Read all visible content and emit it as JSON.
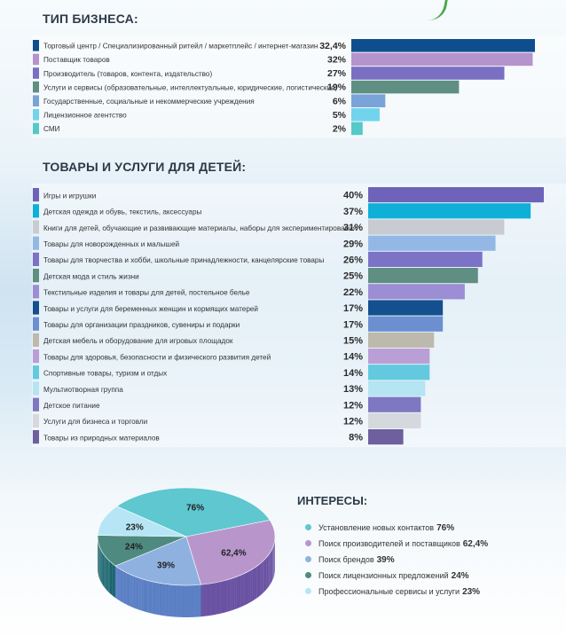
{
  "business_type": {
    "title": "ТИП БИЗНЕСА:"
  },
  "children_goods": {
    "title": "ТОВАРЫ И УСЛУГИ ДЛЯ ДЕТЕЙ:"
  },
  "interests": {
    "title": "ИНТЕРЕСЫ:"
  },
  "chart_data": [
    {
      "type": "bar",
      "orientation": "horizontal",
      "title": "ТИП БИЗНЕСА:",
      "xlim": [
        0,
        32.4
      ],
      "bars": [
        {
          "label": "Торговый центр / Специализированный ритейл / маркетплейс / интернет-магазин",
          "value": 32.4,
          "value_label": "32,4%",
          "color": "#0f4e8c"
        },
        {
          "label": "Поставщик товаров",
          "value": 32,
          "value_label": "32%",
          "color": "#b593cd"
        },
        {
          "label": "Производитель (товаров, контента, издательство)",
          "value": 27,
          "value_label": "27%",
          "color": "#7a6fc2"
        },
        {
          "label": "Услуги и сервисы (образовательные, интеллектуальные, юридические, логистические)",
          "value": 19,
          "value_label": "19%",
          "color": "#5f8f82"
        },
        {
          "label": "Государственные, социальные и некоммерческие учреждения",
          "value": 6,
          "value_label": "6%",
          "color": "#7aa4d8"
        },
        {
          "label": "Лицензионное агентство",
          "value": 5,
          "value_label": "5%",
          "color": "#72d4ec"
        },
        {
          "label": "СМИ",
          "value": 2,
          "value_label": "2%",
          "color": "#55c8c8"
        }
      ]
    },
    {
      "type": "bar",
      "orientation": "horizontal",
      "title": "ТОВАРЫ И УСЛУГИ ДЛЯ ДЕТЕЙ:",
      "xlim": [
        0,
        40
      ],
      "bars": [
        {
          "label": "Игры и игрушки",
          "value": 40,
          "value_label": "40%",
          "color": "#6e63b8"
        },
        {
          "label": "Детская одежда и обувь, текстиль, аксессуары",
          "value": 37,
          "value_label": "37%",
          "color": "#0fb0d8"
        },
        {
          "label": "Книги для детей, обучающие и развивающие материалы, наборы для экспериментирования",
          "value": 31,
          "value_label": "31%",
          "color": "#c8ccd2"
        },
        {
          "label": "Товары для новорожденных и малышей",
          "value": 29,
          "value_label": "29%",
          "color": "#94b8e6"
        },
        {
          "label": "Товары для творчества и хобби, школьные принадлежности, канцелярские товары",
          "value": 26,
          "value_label": "26%",
          "color": "#7c72c6"
        },
        {
          "label": "Детская мода и стиль жизни",
          "value": 25,
          "value_label": "25%",
          "color": "#5f8f82"
        },
        {
          "label": "Текстильные изделия и товары для детей, постельное белье",
          "value": 22,
          "value_label": "22%",
          "color": "#9b8ed4"
        },
        {
          "label": "Товары и услуги для беременных женщин и кормящих матерей",
          "value": 17,
          "value_label": "17%",
          "color": "#144f8e"
        },
        {
          "label": "Товары для организации праздников, сувениры и подарки",
          "value": 17,
          "value_label": "17%",
          "color": "#6b8fd0"
        },
        {
          "label": "Детская мебель и оборудование для игровых площадок",
          "value": 15,
          "value_label": "15%",
          "color": "#bdb9ad"
        },
        {
          "label": "Товары для здоровья, безопасности и физического развития детей",
          "value": 14,
          "value_label": "14%",
          "color": "#b99fd6"
        },
        {
          "label": "Спортивные товары, туризм и отдых",
          "value": 14,
          "value_label": "14%",
          "color": "#62c9df"
        },
        {
          "label": "Мультиотворная группа",
          "value": 13,
          "value_label": "13%",
          "color": "#b5e4f2"
        },
        {
          "label": "Детское питание",
          "value": 12,
          "value_label": "12%",
          "color": "#7e78c2"
        },
        {
          "label": "Услуги для бизнеса и торговли",
          "value": 12,
          "value_label": "12%",
          "color": "#d5d8dc"
        },
        {
          "label": "Товары из природных материалов",
          "value": 8,
          "value_label": "8%",
          "color": "#6e5f9e"
        }
      ]
    },
    {
      "type": "pie",
      "title": "ИНТЕРЕСЫ:",
      "slices": [
        {
          "label": "Установление новых контактов",
          "value": 76,
          "value_label": "76%",
          "color": "#5ec7cf",
          "side_color": "#3fa4ab"
        },
        {
          "label": "Поиск производителей и поставщиков",
          "value": 62.4,
          "value_label": "62,4%",
          "color": "#b896cc",
          "side_color": "#6a52a3"
        },
        {
          "label": "Поиск брендов",
          "value": 39,
          "value_label": "39%",
          "color": "#8fb1e0",
          "side_color": "#5a7fc4"
        },
        {
          "label": "Поиск лицензионных предложений",
          "value": 24,
          "value_label": "24%",
          "color": "#4f8a80",
          "side_color": "#14606a"
        },
        {
          "label": "Профессиональные сервисы и услуги",
          "value": 23,
          "value_label": "23%",
          "color": "#b6e6f5",
          "side_color": "#6d8fc8"
        }
      ]
    }
  ]
}
